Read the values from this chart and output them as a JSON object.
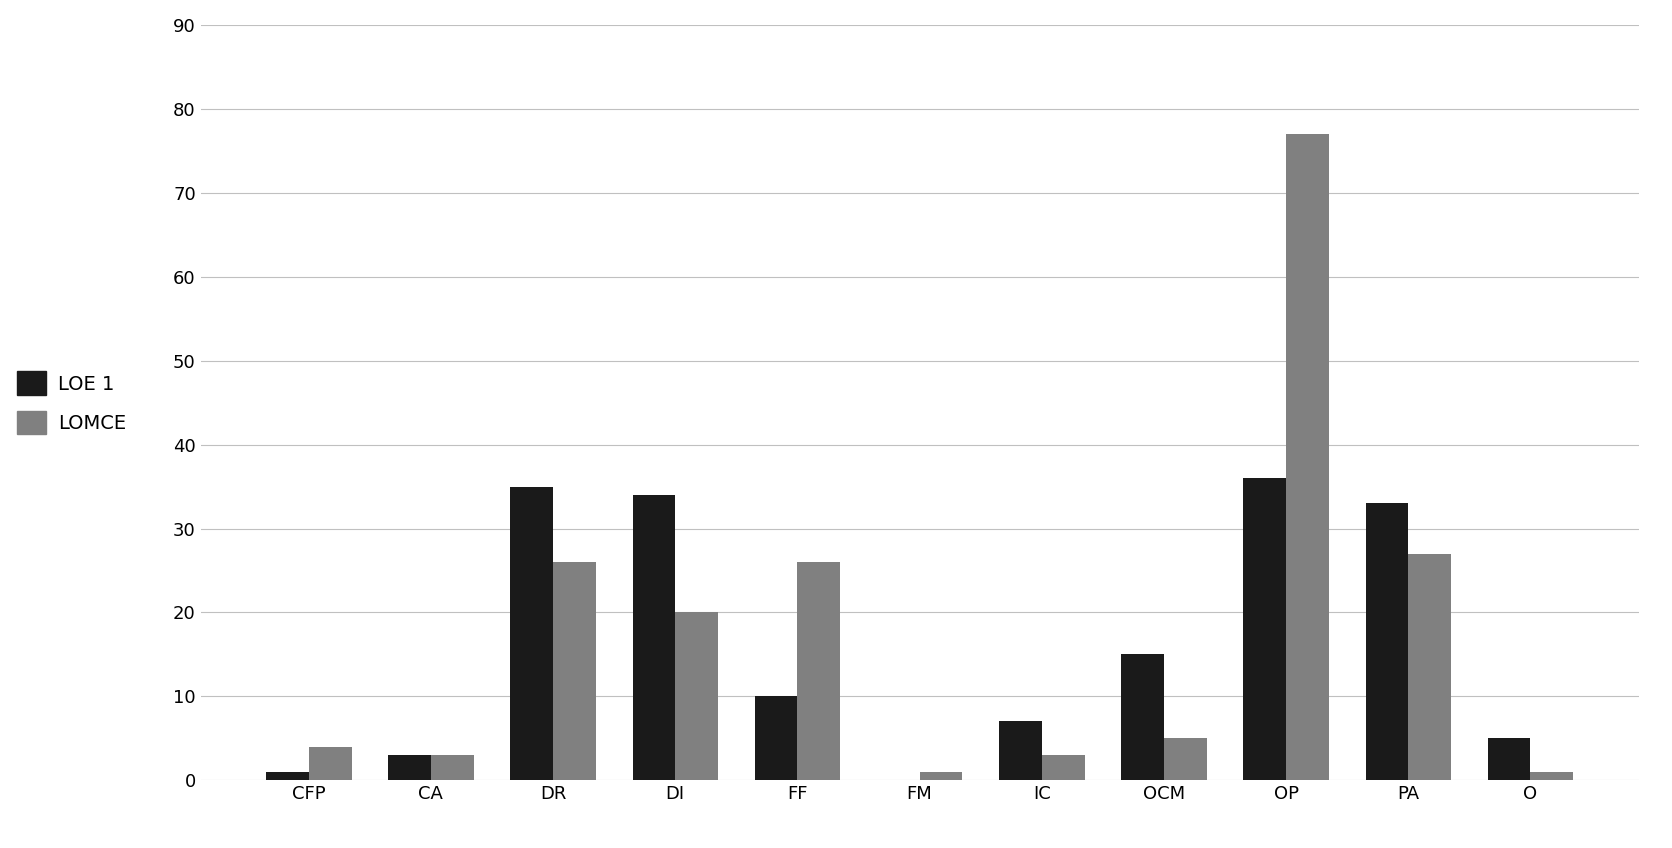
{
  "categories": [
    "CFP",
    "CA",
    "DR",
    "DI",
    "FF",
    "FM",
    "IC",
    "OCM",
    "OP",
    "PA",
    "O"
  ],
  "loe1_values": [
    1,
    3,
    35,
    34,
    10,
    0,
    7,
    15,
    36,
    33,
    5
  ],
  "lomce_values": [
    4,
    3,
    26,
    20,
    26,
    1,
    3,
    5,
    77,
    27,
    1
  ],
  "loe1_color": "#1a1a1a",
  "lomce_color": "#808080",
  "legend_labels": [
    "LOE 1",
    "LOMCE"
  ],
  "ylim": [
    0,
    90
  ],
  "yticks": [
    0,
    10,
    20,
    30,
    40,
    50,
    60,
    70,
    80,
    90
  ],
  "background_color": "#ffffff",
  "grid_color": "#c0c0c0",
  "bar_width": 0.35,
  "axis_fontsize": 13,
  "legend_fontsize": 14
}
